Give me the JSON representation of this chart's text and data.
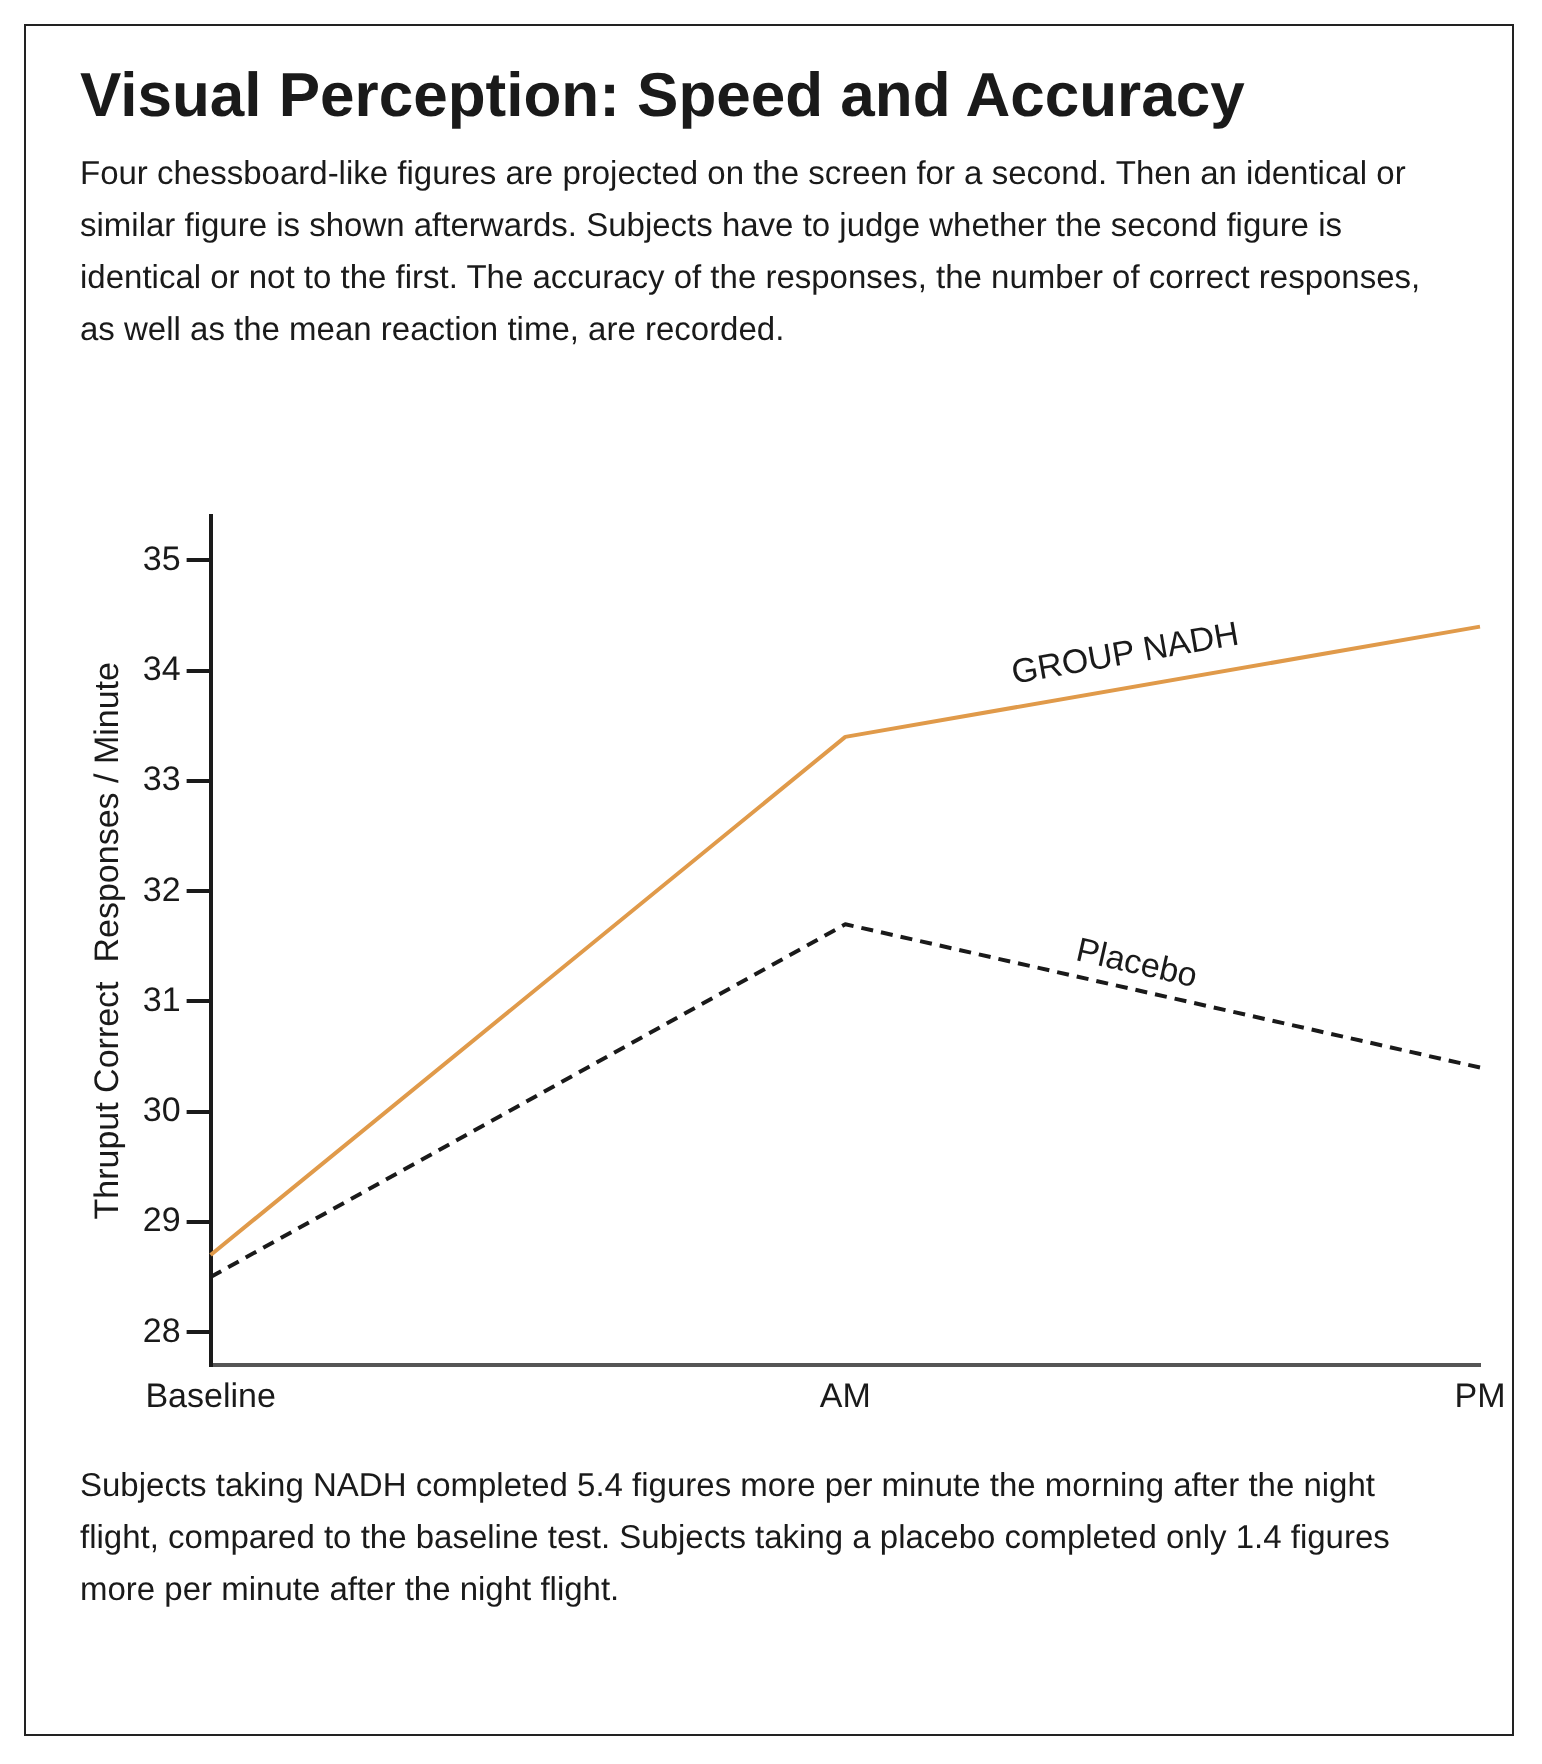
{
  "chart_data": {
    "type": "line",
    "title": "Visual Perception: Speed and Accuracy",
    "subtitle": "Four chessboard-like figures are projected on the screen for a second. Then an identical or similar figure is shown afterwards. Subjects have to judge whether the second figure is identical or not to the first. The accuracy of the responses, the number of correct responses, as well as the mean reaction time, are recorded.",
    "ylabel": "Thruput Correct  Responses / Minute",
    "categories": [
      "Baseline",
      "AM",
      "PM"
    ],
    "series": [
      {
        "name": "GROUP NADH",
        "color": "#e09a4a",
        "values": [
          28.7,
          33.4,
          34.4
        ],
        "line_style": "solid"
      },
      {
        "name": "Placebo",
        "color": "#1a1a1a",
        "values": [
          28.5,
          31.7,
          30.4
        ],
        "line_style": "dashed"
      }
    ],
    "ylim": [
      27.7,
      35.4
    ],
    "yticks": [
      28,
      29,
      30,
      31,
      32,
      33,
      34,
      35
    ],
    "grid": false,
    "legend": false,
    "marker": "none",
    "annotations": [
      "Subjects taking NADH completed 5.4 figures more per minute the morning after the night flight, compared to the baseline test. Subjects taking a placebo completed only 1.4 figures more per minute after the night flight."
    ]
  }
}
